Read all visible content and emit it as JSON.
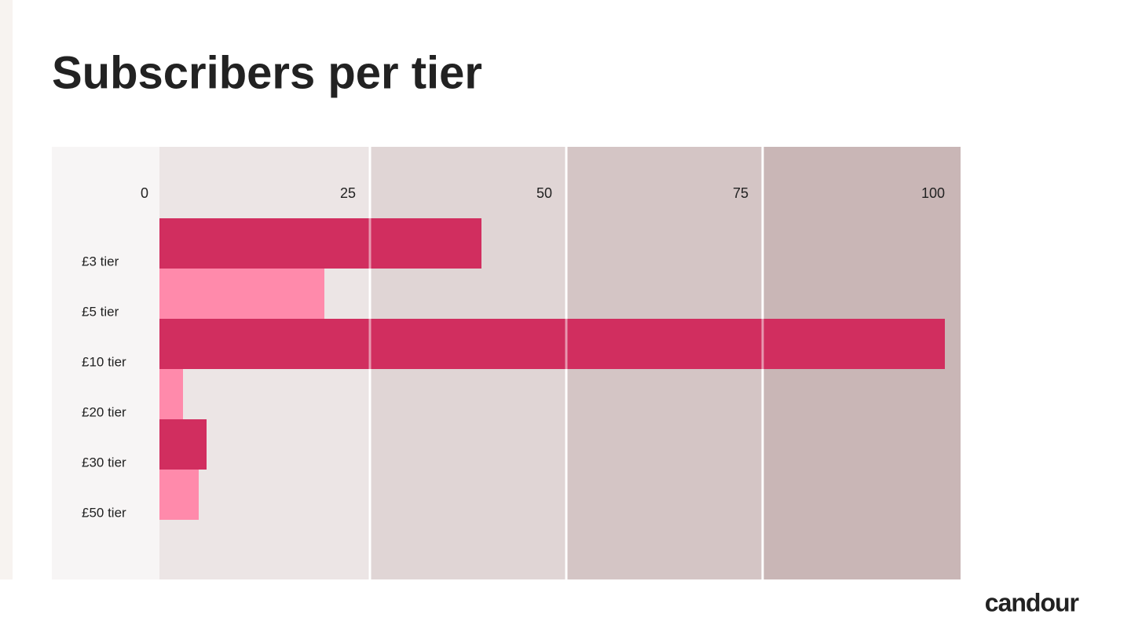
{
  "chart_data": {
    "type": "bar",
    "orientation": "horizontal",
    "title": "Subscribers per tier",
    "categories": [
      "£3 tier",
      "£5 tier",
      "£10 tier",
      "£20 tier",
      "£30 tier",
      "£50 tier"
    ],
    "values": [
      41,
      21,
      100,
      3,
      6,
      5
    ],
    "colors": [
      "#d12e5f",
      "#ff8aab",
      "#d12e5f",
      "#ff8aab",
      "#d12e5f",
      "#ff8aab"
    ],
    "xlim": [
      0,
      100
    ],
    "xticks": [
      0,
      25,
      50,
      75,
      100
    ],
    "grid": true
  },
  "footer": {
    "logo": "candour"
  }
}
